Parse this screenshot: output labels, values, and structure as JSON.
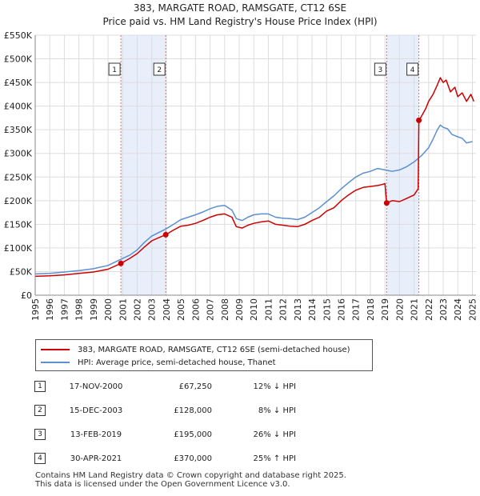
{
  "chart_data": {
    "type": "line",
    "title": "383, MARGATE ROAD, RAMSGATE, CT12 6SE",
    "subtitle": "Price paid vs. HM Land Registry's House Price Index (HPI)",
    "xlabel": "",
    "ylabel": "",
    "xlim": [
      1995,
      2025.25
    ],
    "ylim": [
      0,
      550000
    ],
    "y_ticks": [
      0,
      50000,
      100000,
      150000,
      200000,
      250000,
      300000,
      350000,
      400000,
      450000,
      500000,
      550000
    ],
    "y_tick_labels": [
      "£0",
      "£50K",
      "£100K",
      "£150K",
      "£200K",
      "£250K",
      "£300K",
      "£350K",
      "£400K",
      "£450K",
      "£500K",
      "£550K"
    ],
    "x_ticks": [
      1995,
      1996,
      1997,
      1998,
      1999,
      2000,
      2001,
      2002,
      2003,
      2004,
      2005,
      2006,
      2007,
      2008,
      2009,
      2010,
      2011,
      2012,
      2013,
      2014,
      2015,
      2016,
      2017,
      2018,
      2019,
      2020,
      2021,
      2022,
      2023,
      2024,
      2025
    ],
    "x_tick_labels": [
      "1995",
      "1996",
      "1997",
      "1998",
      "1999",
      "2000",
      "2001",
      "2002",
      "2003",
      "2004",
      "2005",
      "2006",
      "2007",
      "2008",
      "2009",
      "2010",
      "2011",
      "2012",
      "2013",
      "2014",
      "2015",
      "2016",
      "2017",
      "2018",
      "2019",
      "2020",
      "2021",
      "2022",
      "2023",
      "2024",
      "2025"
    ],
    "grid": true,
    "series": [
      {
        "name": "383, MARGATE ROAD, RAMSGATE, CT12 6SE (semi-detached house)",
        "color": "#cc0000",
        "x": [
          1995.0,
          1996.0,
          1997.0,
          1998.0,
          1999.0,
          2000.0,
          2000.88,
          2001.5,
          2002.0,
          2002.5,
          2003.0,
          2003.5,
          2003.96,
          2004.5,
          2005.0,
          2005.5,
          2006.0,
          2006.5,
          2007.0,
          2007.5,
          2008.0,
          2008.5,
          2008.8,
          2009.2,
          2009.6,
          2010.0,
          2010.5,
          2011.0,
          2011.5,
          2012.0,
          2012.5,
          2013.0,
          2013.5,
          2014.0,
          2014.5,
          2015.0,
          2015.5,
          2016.0,
          2016.5,
          2017.0,
          2017.5,
          2018.0,
          2018.5,
          2018.8,
          2019.0,
          2019.12,
          2019.5,
          2020.0,
          2020.5,
          2021.0,
          2021.28,
          2021.33,
          2021.5,
          2021.8,
          2022.0,
          2022.3,
          2022.6,
          2022.8,
          2023.0,
          2023.2,
          2023.5,
          2023.8,
          2024.0,
          2024.3,
          2024.6,
          2024.9,
          2025.1
        ],
        "values": [
          40000,
          41000,
          43000,
          46000,
          49000,
          55000,
          67250,
          78000,
          88000,
          102000,
          115000,
          122000,
          128000,
          138000,
          146000,
          148000,
          152000,
          158000,
          165000,
          170000,
          172000,
          165000,
          145000,
          142000,
          148000,
          152000,
          155000,
          157000,
          150000,
          148000,
          146000,
          145000,
          150000,
          158000,
          165000,
          178000,
          185000,
          200000,
          212000,
          222000,
          228000,
          230000,
          232000,
          234000,
          236000,
          195000,
          200000,
          198000,
          205000,
          212000,
          225000,
          370000,
          378000,
          395000,
          410000,
          425000,
          445000,
          460000,
          450000,
          455000,
          430000,
          440000,
          420000,
          428000,
          410000,
          425000,
          410000
        ]
      },
      {
        "name": "HPI: Average price, semi-detached house, Thanet",
        "color": "#5b8fcf",
        "x": [
          1995.0,
          1996.0,
          1997.0,
          1998.0,
          1999.0,
          2000.0,
          2000.88,
          2001.5,
          2002.0,
          2002.5,
          2003.0,
          2003.5,
          2003.96,
          2004.5,
          2005.0,
          2005.5,
          2006.0,
          2006.5,
          2007.0,
          2007.5,
          2008.0,
          2008.5,
          2008.8,
          2009.2,
          2009.6,
          2010.0,
          2010.5,
          2011.0,
          2011.5,
          2012.0,
          2012.5,
          2013.0,
          2013.5,
          2014.0,
          2014.5,
          2015.0,
          2015.5,
          2016.0,
          2016.5,
          2017.0,
          2017.5,
          2018.0,
          2018.5,
          2019.0,
          2019.5,
          2020.0,
          2020.5,
          2021.0,
          2021.5,
          2022.0,
          2022.3,
          2022.6,
          2022.8,
          2023.0,
          2023.3,
          2023.6,
          2024.0,
          2024.3,
          2024.6,
          2025.0
        ],
        "values": [
          45000,
          46000,
          49000,
          52000,
          56000,
          63000,
          76000,
          85000,
          96000,
          112000,
          125000,
          133000,
          140000,
          150000,
          160000,
          165000,
          170000,
          176000,
          183000,
          188000,
          190000,
          180000,
          162000,
          158000,
          165000,
          170000,
          172000,
          172000,
          165000,
          163000,
          162000,
          160000,
          165000,
          175000,
          185000,
          198000,
          210000,
          225000,
          238000,
          250000,
          258000,
          262000,
          268000,
          265000,
          262000,
          265000,
          272000,
          282000,
          295000,
          312000,
          330000,
          350000,
          360000,
          355000,
          352000,
          340000,
          335000,
          332000,
          322000,
          325000
        ]
      }
    ],
    "sales": [
      {
        "label": "1",
        "x": 2000.88,
        "value": 67250
      },
      {
        "label": "2",
        "x": 2003.96,
        "value": 128000
      },
      {
        "label": "3",
        "x": 2019.12,
        "value": 195000
      },
      {
        "label": "4",
        "x": 2021.33,
        "value": 370000
      }
    ],
    "shaded_spans": [
      [
        2000.88,
        2003.96
      ],
      [
        2019.12,
        2021.33
      ]
    ],
    "legend": [
      {
        "label": "383, MARGATE ROAD, RAMSGATE, CT12 6SE (semi-detached house)",
        "color": "#cc0000"
      },
      {
        "label": "HPI: Average price, semi-detached house, Thanet",
        "color": "#5b8fcf"
      }
    ]
  },
  "transactions": [
    {
      "num": "1",
      "date": "17-NOV-2000",
      "price": "£67,250",
      "hpi": "12% ↓ HPI"
    },
    {
      "num": "2",
      "date": "15-DEC-2003",
      "price": "£128,000",
      "hpi": "8% ↓ HPI"
    },
    {
      "num": "3",
      "date": "13-FEB-2019",
      "price": "£195,000",
      "hpi": "26% ↓ HPI"
    },
    {
      "num": "4",
      "date": "30-APR-2021",
      "price": "£370,000",
      "hpi": "25% ↑ HPI"
    }
  ],
  "footer": {
    "line1": "Contains HM Land Registry data © Crown copyright and database right 2025.",
    "line2": "This data is licensed under the Open Government Licence v3.0."
  },
  "colors": {
    "property": "#cc0000",
    "hpi": "#5b8fcf",
    "span": "#e8eefa",
    "grid": "#dddddd"
  }
}
